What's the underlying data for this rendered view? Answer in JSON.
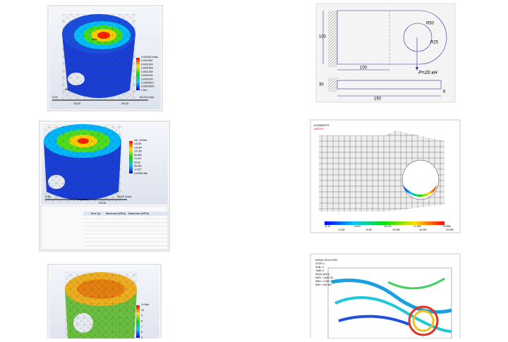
{
  "piston_1": {
    "legend": [
      "0,0015513 Max",
      "0,0001867",
      "0,0001509",
      "0,0001509",
      "0,0001259",
      "0,0001004",
      "0,0000754",
      "0,00005017",
      "0,00002509",
      "0 Min"
    ],
    "scale": [
      "0,00",
      "60,00 (mm)",
      "15,00",
      "45,00"
    ],
    "labels": [
      "Max",
      "Min"
    ]
  },
  "piston_2": {
    "legend": [
      "161,78 Max",
      "143,81",
      "125,84",
      "107,86",
      "89,883",
      "71,907",
      "53,93",
      "35,953",
      "17,977",
      "0,00084 Min"
    ],
    "scale": [
      "0,00",
      "50,00 (mm)",
      "25,00"
    ],
    "table_headers": [
      "Time [s]",
      "Minimum [MPa]",
      "Maximum [MPa]"
    ]
  },
  "piston_3": {
    "legend": [
      "11 Max",
      "10",
      "9",
      "8",
      "7",
      "6",
      "5"
    ]
  },
  "drawing": {
    "dimensions": [
      "100",
      "100",
      "R50",
      "R25",
      "P=20 кН",
      "30",
      "150",
      "6"
    ]
  },
  "elements_plot": {
    "title": "ELEMENTS",
    "subtitle": "ANSYS",
    "scale_top": [
      "-5.13",
      "8.694",
      "16.191",
      "21.459",
      "26.886"
    ],
    "scale_bottom": [
      "5.432",
      "13.55",
      "18.959",
      "26.352",
      "23.259"
    ]
  },
  "nodal_plot": {
    "lines": [
      "NODAL SOLUTION",
      "STEP=1",
      "SUB =1",
      "TIME=1",
      "SEQV (AVG)",
      "DMX =.183E-03",
      "SMN =.129E-03",
      "SMX =118.061"
    ]
  }
}
